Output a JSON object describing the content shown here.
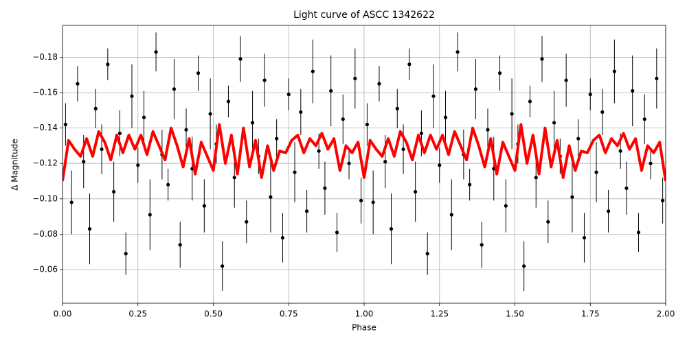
{
  "chart_data": {
    "type": "scatter",
    "title": "Light curve of ASCC 1342622",
    "xlabel": "Phase",
    "ylabel": "Δ Magnitude",
    "xlim": [
      0,
      2
    ],
    "ylim": [
      -0.041,
      -0.198
    ],
    "xticks": [
      {
        "value": 0,
        "label": "0.00"
      },
      {
        "value": 0.25,
        "label": "0.25"
      },
      {
        "value": 0.5,
        "label": "0.50"
      },
      {
        "value": 0.75,
        "label": "0.75"
      },
      {
        "value": 1,
        "label": "1.00"
      },
      {
        "value": 1.25,
        "label": "1.25"
      },
      {
        "value": 1.5,
        "label": "1.50"
      },
      {
        "value": 1.75,
        "label": "1.75"
      },
      {
        "value": 2,
        "label": "2.00"
      }
    ],
    "yticks": [
      {
        "value": -0.18,
        "label": "−0.18"
      },
      {
        "value": -0.16,
        "label": "−0.16"
      },
      {
        "value": -0.14,
        "label": "−0.14"
      },
      {
        "value": -0.12,
        "label": "−0.12"
      },
      {
        "value": -0.1,
        "label": "−0.10"
      },
      {
        "value": -0.08,
        "label": "−0.08"
      },
      {
        "value": -0.06,
        "label": "−0.06"
      }
    ],
    "grid": true,
    "series": [
      {
        "type": "scatter",
        "color": "#000000",
        "x": [
          0.01,
          0.03,
          0.05,
          0.07,
          0.09,
          0.11,
          0.13,
          0.15,
          0.17,
          0.19,
          0.21,
          0.23,
          0.25,
          0.27,
          0.29,
          0.31,
          0.33,
          0.35,
          0.37,
          0.39,
          0.41,
          0.43,
          0.45,
          0.47,
          0.49,
          0.51,
          0.53,
          0.55,
          0.57,
          0.59,
          0.61,
          0.63,
          0.65,
          0.67,
          0.69,
          0.71,
          0.73,
          0.75,
          0.77,
          0.79,
          0.81,
          0.83,
          0.85,
          0.87,
          0.89,
          0.91,
          0.93,
          0.95,
          0.97,
          0.99,
          1.01,
          1.03,
          1.05,
          1.07,
          1.09,
          1.11,
          1.13,
          1.15,
          1.17,
          1.19,
          1.21,
          1.23,
          1.25,
          1.27,
          1.29,
          1.31,
          1.33,
          1.35,
          1.37,
          1.39,
          1.41,
          1.43,
          1.45,
          1.47,
          1.49,
          1.51,
          1.53,
          1.55,
          1.57,
          1.59,
          1.61,
          1.63,
          1.65,
          1.67,
          1.69,
          1.71,
          1.73,
          1.75,
          1.77,
          1.79,
          1.81,
          1.83,
          1.85,
          1.87,
          1.89,
          1.91,
          1.93,
          1.95,
          1.97,
          1.99
        ],
        "y": [
          -0.142,
          -0.098,
          -0.165,
          -0.121,
          -0.083,
          -0.151,
          -0.128,
          -0.176,
          -0.104,
          -0.137,
          -0.069,
          -0.158,
          -0.119,
          -0.146,
          -0.091,
          -0.183,
          -0.125,
          -0.108,
          -0.162,
          -0.074,
          -0.139,
          -0.117,
          -0.171,
          -0.096,
          -0.148,
          -0.131,
          -0.062,
          -0.155,
          -0.112,
          -0.179,
          -0.087,
          -0.143,
          -0.124,
          -0.167,
          -0.101,
          -0.134,
          -0.078,
          -0.159,
          -0.115,
          -0.149,
          -0.093,
          -0.172,
          -0.127,
          -0.106,
          -0.161,
          -0.081,
          -0.145,
          -0.12,
          -0.168,
          -0.099,
          -0.142,
          -0.098,
          -0.165,
          -0.121,
          -0.083,
          -0.151,
          -0.128,
          -0.176,
          -0.104,
          -0.137,
          -0.069,
          -0.158,
          -0.119,
          -0.146,
          -0.091,
          -0.183,
          -0.125,
          -0.108,
          -0.162,
          -0.074,
          -0.139,
          -0.117,
          -0.171,
          -0.096,
          -0.148,
          -0.131,
          -0.062,
          -0.155,
          -0.112,
          -0.179,
          -0.087,
          -0.143,
          -0.124,
          -0.167,
          -0.101,
          -0.134,
          -0.078,
          -0.159,
          -0.115,
          -0.149,
          -0.093,
          -0.172,
          -0.127,
          -0.106,
          -0.161,
          -0.081,
          -0.145,
          -0.12,
          -0.168,
          -0.099
        ],
        "err": [
          0.012,
          0.018,
          0.01,
          0.015,
          0.02,
          0.011,
          0.014,
          0.009,
          0.017,
          0.013,
          0.012,
          0.018,
          0.01,
          0.015,
          0.02,
          0.011,
          0.014,
          0.009,
          0.017,
          0.013,
          0.012,
          0.018,
          0.01,
          0.015,
          0.02,
          0.011,
          0.014,
          0.009,
          0.017,
          0.013,
          0.012,
          0.018,
          0.01,
          0.015,
          0.02,
          0.011,
          0.014,
          0.009,
          0.017,
          0.013,
          0.012,
          0.018,
          0.01,
          0.015,
          0.02,
          0.011,
          0.014,
          0.009,
          0.017,
          0.013,
          0.012,
          0.018,
          0.01,
          0.015,
          0.02,
          0.011,
          0.014,
          0.009,
          0.017,
          0.013,
          0.012,
          0.018,
          0.01,
          0.015,
          0.02,
          0.011,
          0.014,
          0.009,
          0.017,
          0.013,
          0.012,
          0.018,
          0.01,
          0.015,
          0.02,
          0.011,
          0.014,
          0.009,
          0.017,
          0.013,
          0.012,
          0.018,
          0.01,
          0.015,
          0.02,
          0.011,
          0.014,
          0.009,
          0.017,
          0.013,
          0.012,
          0.018,
          0.01,
          0.015,
          0.02,
          0.011,
          0.014,
          0.009,
          0.017,
          0.013
        ]
      },
      {
        "type": "line",
        "color": "#ff0000",
        "x": [
          0,
          0.02,
          0.04,
          0.06,
          0.08,
          0.1,
          0.12,
          0.14,
          0.16,
          0.18,
          0.2,
          0.22,
          0.24,
          0.26,
          0.28,
          0.3,
          0.32,
          0.34,
          0.36,
          0.38,
          0.4,
          0.42,
          0.44,
          0.46,
          0.48,
          0.5,
          0.52,
          0.54,
          0.56,
          0.58,
          0.6,
          0.62,
          0.64,
          0.66,
          0.68,
          0.7,
          0.72,
          0.74,
          0.76,
          0.78,
          0.8,
          0.82,
          0.84,
          0.86,
          0.88,
          0.9,
          0.92,
          0.94,
          0.96,
          0.98,
          1,
          1.02,
          1.04,
          1.06,
          1.08,
          1.1,
          1.12,
          1.14,
          1.16,
          1.18,
          1.2,
          1.22,
          1.24,
          1.26,
          1.28,
          1.3,
          1.32,
          1.34,
          1.36,
          1.38,
          1.4,
          1.42,
          1.44,
          1.46,
          1.48,
          1.5,
          1.52,
          1.54,
          1.56,
          1.58,
          1.6,
          1.62,
          1.64,
          1.66,
          1.68,
          1.7,
          1.72,
          1.74,
          1.76,
          1.78,
          1.8,
          1.82,
          1.84,
          1.86,
          1.88,
          1.9,
          1.92,
          1.94,
          1.96,
          1.98,
          2
        ],
        "y": [
          -0.11,
          -0.133,
          -0.128,
          -0.124,
          -0.134,
          -0.124,
          -0.138,
          -0.132,
          -0.122,
          -0.136,
          -0.126,
          -0.136,
          -0.128,
          -0.136,
          -0.125,
          -0.138,
          -0.13,
          -0.122,
          -0.14,
          -0.13,
          -0.118,
          -0.134,
          -0.114,
          -0.132,
          -0.124,
          -0.116,
          -0.142,
          -0.12,
          -0.136,
          -0.114,
          -0.14,
          -0.118,
          -0.133,
          -0.112,
          -0.13,
          -0.116,
          -0.127,
          -0.126,
          -0.133,
          -0.136,
          -0.126,
          -0.134,
          -0.13,
          -0.137,
          -0.128,
          -0.134,
          -0.116,
          -0.13,
          -0.126,
          -0.132,
          -0.112,
          -0.133,
          -0.128,
          -0.124,
          -0.134,
          -0.124,
          -0.138,
          -0.132,
          -0.122,
          -0.136,
          -0.126,
          -0.136,
          -0.128,
          -0.136,
          -0.125,
          -0.138,
          -0.13,
          -0.122,
          -0.14,
          -0.13,
          -0.118,
          -0.134,
          -0.114,
          -0.132,
          -0.124,
          -0.116,
          -0.142,
          -0.12,
          -0.136,
          -0.114,
          -0.14,
          -0.118,
          -0.133,
          -0.112,
          -0.13,
          -0.116,
          -0.127,
          -0.126,
          -0.133,
          -0.136,
          -0.126,
          -0.134,
          -0.13,
          -0.137,
          -0.128,
          -0.134,
          -0.116,
          -0.13,
          -0.126,
          -0.132,
          -0.11
        ]
      }
    ]
  }
}
